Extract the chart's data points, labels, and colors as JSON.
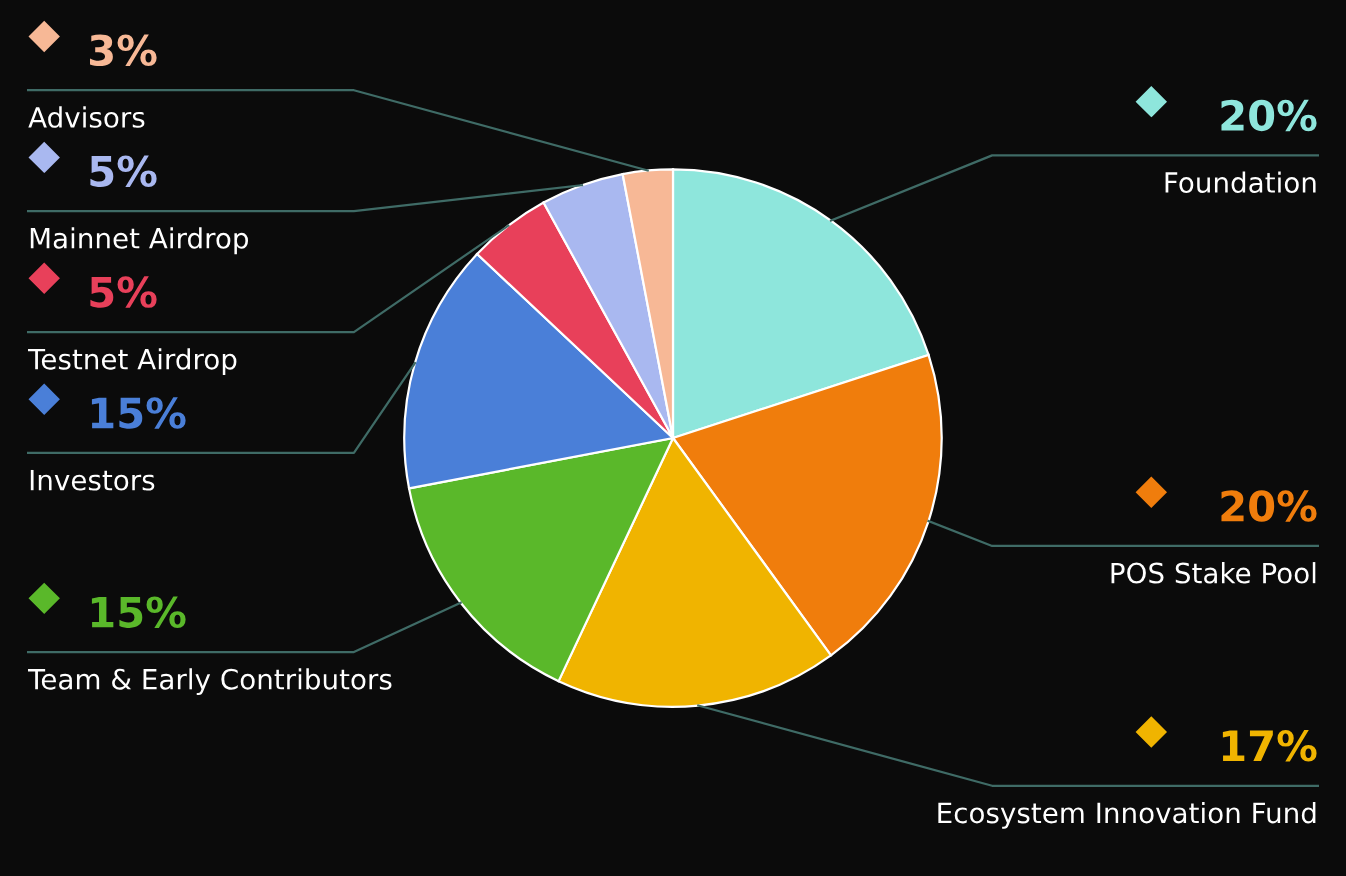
{
  "chart_data": {
    "type": "pie",
    "categories": [
      "Foundation",
      "POS Stake Pool",
      "Ecosystem Innovation Fund",
      "Team & Early Contributors",
      "Investors",
      "Testnet Airdrop",
      "Mainnet Airdrop",
      "Advisors"
    ],
    "values": [
      20,
      20,
      17,
      15,
      15,
      5,
      5,
      3
    ],
    "value_labels": [
      "20%",
      "20%",
      "17%",
      "15%",
      "15%",
      "5%",
      "5%",
      "3%"
    ],
    "colors": [
      "#8ee6dc",
      "#f07d0c",
      "#f0b400",
      "#5ab82a",
      "#4a7fd8",
      "#e8405a",
      "#a9b8f0",
      "#f7b896"
    ],
    "legend": false
  }
}
